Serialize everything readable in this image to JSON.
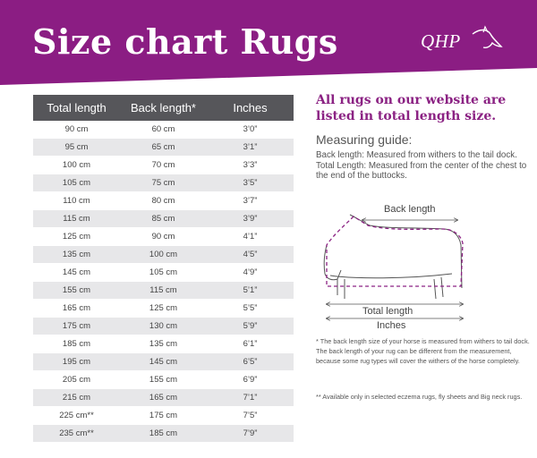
{
  "header": {
    "title": "Size chart Rugs",
    "logo_text": "QHP",
    "colors": {
      "banner": "#8b1d83",
      "accent": "#8b2283",
      "table_header": "#56565a"
    }
  },
  "table": {
    "columns": [
      "Total length",
      "Back length*",
      "Inches"
    ],
    "rows": [
      [
        "90 cm",
        "60 cm",
        "3’0”"
      ],
      [
        "95 cm",
        "65 cm",
        "3’1”"
      ],
      [
        "100 cm",
        "70 cm",
        "3’3”"
      ],
      [
        "105 cm",
        "75 cm",
        "3’5”"
      ],
      [
        "110 cm",
        "80 cm",
        "3’7”"
      ],
      [
        "115 cm",
        "85 cm",
        "3’9”"
      ],
      [
        "125 cm",
        "90 cm",
        "4’1”"
      ],
      [
        "135 cm",
        "100 cm",
        "4’5”"
      ],
      [
        "145 cm",
        "105 cm",
        "4’9”"
      ],
      [
        "155 cm",
        "115 cm",
        "5’1”"
      ],
      [
        "165 cm",
        "125 cm",
        "5’5”"
      ],
      [
        "175 cm",
        "130 cm",
        "5’9”"
      ],
      [
        "185 cm",
        "135 cm",
        "6’1”"
      ],
      [
        "195 cm",
        "145 cm",
        "6’5”"
      ],
      [
        "205 cm",
        "155 cm",
        "6’9”"
      ],
      [
        "215 cm",
        "165 cm",
        "7’1”"
      ],
      [
        "225 cm**",
        "175 cm",
        "7’5”"
      ],
      [
        "235 cm**",
        "185 cm",
        "7’9”"
      ]
    ]
  },
  "info": {
    "heading": "All rugs on our website are listed in total length size.",
    "guide_title": "Measuring guide:",
    "guide_back": "Back length: Measured from withers to the tail dock.",
    "guide_total": "Total Length: Measured from the center of the chest to the end of the buttocks.",
    "diagram_back_label": "Back length",
    "diagram_total_label": "Total length",
    "diagram_inches_label": "Inches",
    "note_1": "* The back length size of your horse is measured from withers to tail dock. The back length of your rug can be different from the measurement, because some rug types will cover the withers of the horse completely.",
    "note_2": "** Available only in selected eczema rugs, fly sheets and Big neck rugs."
  }
}
